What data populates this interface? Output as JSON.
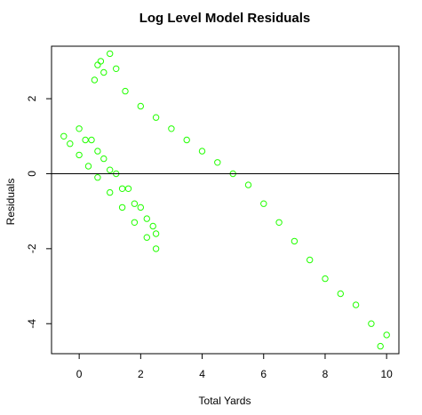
{
  "chart_data": {
    "type": "scatter",
    "title": "Log Level Model Residuals",
    "xlabel": "Total Yards",
    "ylabel": "Residuals",
    "xlim": [
      -0.9,
      10.4
    ],
    "ylim": [
      -4.8,
      3.4
    ],
    "xticks": [
      0,
      2,
      4,
      6,
      8,
      10
    ],
    "yticks": [
      -4,
      -2,
      0,
      2
    ],
    "reference_line": {
      "y": 0
    },
    "grid": false,
    "legend": "none",
    "marker": "open-circle",
    "point_color": "#22ff00",
    "series": [
      {
        "band_model": "y = 0.5 - x",
        "points": [
          [
            -0.5,
            1.0
          ],
          [
            -0.3,
            0.8
          ],
          [
            0.0,
            0.5
          ],
          [
            0.3,
            0.2
          ],
          [
            0.6,
            -0.1
          ],
          [
            1.0,
            -0.5
          ],
          [
            1.4,
            -0.9
          ],
          [
            1.8,
            -1.3
          ],
          [
            2.2,
            -1.7
          ],
          [
            2.5,
            -2.0
          ]
        ]
      },
      {
        "band_model": "y = 0.5 - x (second band)",
        "points": [
          [
            0.0,
            1.2
          ],
          [
            0.4,
            0.9
          ],
          [
            0.8,
            0.4
          ],
          [
            1.2,
            0.0
          ],
          [
            1.6,
            -0.4
          ],
          [
            2.0,
            -0.9
          ],
          [
            2.4,
            -1.4
          ]
        ]
      },
      {
        "band_model": "y = 0.5 - x (upper band)",
        "points": [
          [
            0.2,
            0.9
          ],
          [
            0.6,
            0.6
          ],
          [
            1.0,
            0.1
          ],
          [
            1.4,
            -0.4
          ],
          [
            1.8,
            -0.8
          ],
          [
            2.2,
            -1.2
          ],
          [
            2.5,
            -1.6
          ]
        ]
      },
      {
        "band_model": "main cloud",
        "points": [
          [
            0.5,
            2.5
          ],
          [
            0.6,
            2.9
          ],
          [
            0.7,
            3.0
          ],
          [
            0.8,
            2.7
          ],
          [
            1.0,
            3.2
          ],
          [
            1.2,
            2.8
          ],
          [
            1.5,
            2.2
          ],
          [
            2.0,
            1.8
          ],
          [
            2.5,
            1.5
          ],
          [
            3.0,
            1.2
          ],
          [
            3.5,
            0.9
          ],
          [
            4.0,
            0.6
          ],
          [
            4.5,
            0.3
          ],
          [
            5.0,
            0.0
          ],
          [
            5.5,
            -0.3
          ],
          [
            6.0,
            -0.8
          ],
          [
            6.5,
            -1.3
          ],
          [
            7.0,
            -1.8
          ],
          [
            7.5,
            -2.3
          ],
          [
            8.0,
            -2.8
          ],
          [
            8.5,
            -3.2
          ],
          [
            9.0,
            -3.5
          ],
          [
            9.5,
            -4.0
          ],
          [
            9.8,
            -4.6
          ],
          [
            10.0,
            -4.3
          ]
        ]
      }
    ]
  }
}
